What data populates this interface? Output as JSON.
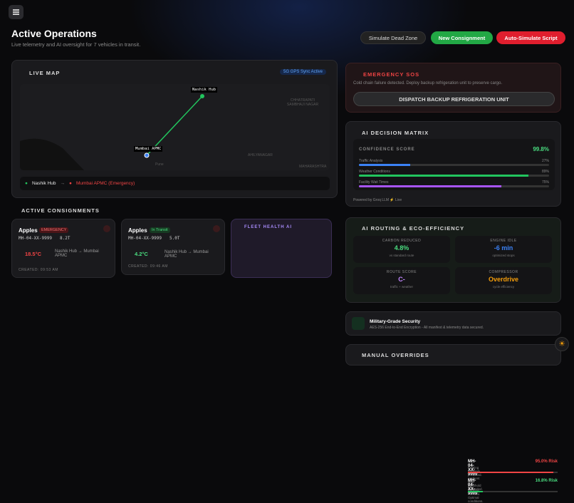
{
  "header": {
    "title": "Active Operations",
    "subtitle": "Live telemetry and AI oversight for 7 vehicles in transit.",
    "buttons": [
      "Simulate Dead Zone",
      "New Consignment",
      "Auto-Simulate Script"
    ]
  },
  "live_map": {
    "title": "LIVE MAP",
    "badge": "5G GPS Sync Active",
    "places": [
      "CHHATRAPATI SAMBHAJI NAGAR",
      "AHILYANAGAR",
      "MAHARASHTRA",
      "Pune"
    ],
    "hubs": {
      "origin": "Nashik Hub",
      "destination": "Mumbai APMC"
    },
    "route": {
      "from": "Nashik Hub",
      "to": "Mumbai APMC (Emergency)"
    }
  },
  "consignments": {
    "title": "ACTIVE CONSIGNMENTS",
    "cards": [
      {
        "product": "Apples",
        "status": "EMERGENCY",
        "vehicle": "MH-04-XX-9999",
        "weight": "8.2T",
        "temp": "18.5°C",
        "route": "Nashik Hub → Mumbai APMC",
        "created": "CREATED: 09:53 AM"
      },
      {
        "product": "Apples",
        "status": "In Transit",
        "vehicle": "MH-04-XX-9999",
        "weight": "5.0T",
        "temp": "4.2°C",
        "route": "Nashik Hub → Mumbai APMC",
        "created": "CREATED: 09:46 AM"
      }
    ]
  },
  "fleet_health": {
    "title": "FLEET HEALTH AI",
    "items": [
      {
        "vehicle": "MH-04-XX-9999",
        "risk": 95.0,
        "risk_label": "95.0% Risk",
        "note": "Cooling anomaly predicted. Ambient heat threshold exceeded."
      },
      {
        "vehicle": "MH-04-XX-9999",
        "risk": 16.8,
        "risk_label": "16.8% Risk",
        "note": "All systems nominal. Optimal conditions."
      }
    ]
  },
  "sos": {
    "title": "EMERGENCY SOS",
    "message": "Cold chain failure detected. Deploy backup refrigeration unit to preserve cargo.",
    "button": "DISPATCH BACKUP REFRIGERATION UNIT"
  },
  "decision_matrix": {
    "title": "AI DECISION MATRIX",
    "confidence_label": "CONFIDENCE SCORE",
    "confidence": "99.8%",
    "factors": [
      {
        "name": "Traffic Analysis",
        "value": 27,
        "label": "27%",
        "color": "#3b82f6"
      },
      {
        "name": "Weather Conditions",
        "value": 89,
        "label": "89%",
        "color": "#22c55e"
      },
      {
        "name": "Facility Wait Times",
        "value": 75,
        "label": "75%",
        "color": "#a855f7"
      }
    ],
    "footer": "Powered by Groq LLM ⚡ Live"
  },
  "routing": {
    "title": "AI ROUTING & ECO-EFFICIENCY",
    "cells": [
      {
        "label": "CARBON REDUCED",
        "value": "4.8%",
        "note": "vs standard route",
        "color": "#4ade80"
      },
      {
        "label": "ENGINE IDLE",
        "value": "-6 min",
        "note": "optimized stops",
        "color": "#3b82f6"
      },
      {
        "label": "ROUTE SCORE",
        "value": "C-",
        "note": "traffic + weather",
        "color": "#c084fc"
      },
      {
        "label": "COMPRESSOR",
        "value": "Overdrive",
        "note": "cycle efficiency",
        "color": "#f59e0b"
      }
    ]
  },
  "security": {
    "title": "Military-Grade Security",
    "note": "AES-256 End-to-End Encryption - All manifest & telemetry data secured."
  },
  "overrides": {
    "title": "MANUAL OVERRIDES"
  }
}
